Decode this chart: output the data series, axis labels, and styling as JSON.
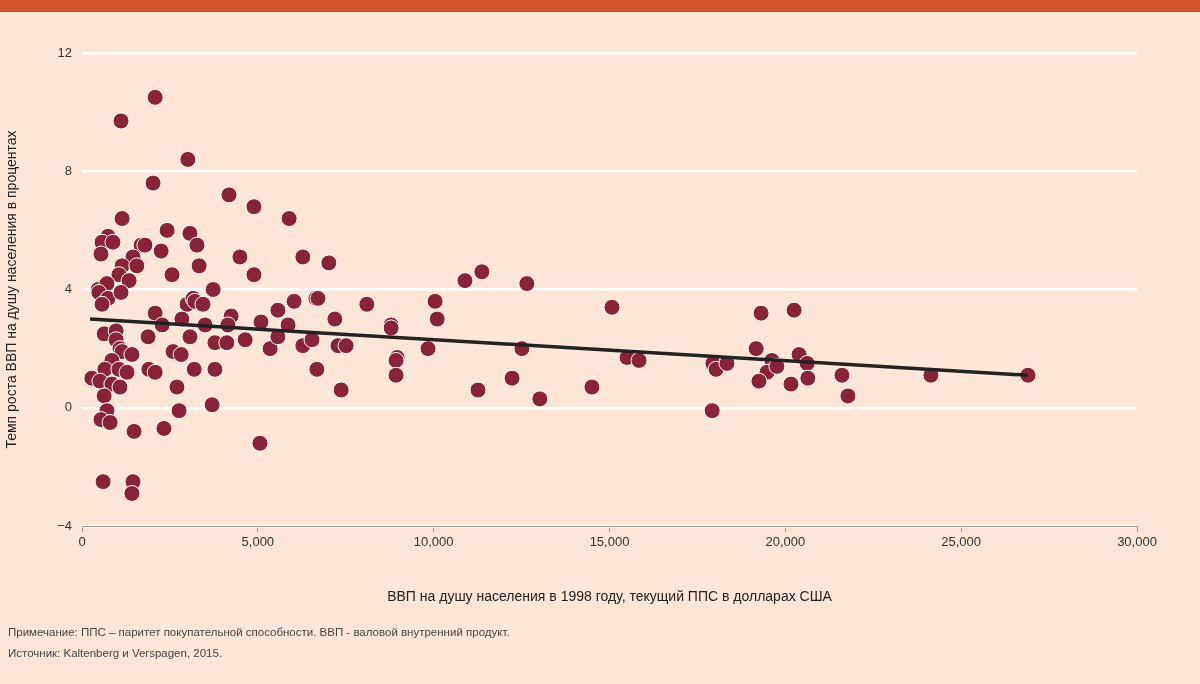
{
  "chart_data": {
    "type": "scatter",
    "xlabel": "ВВП на душу населения в 1998 году, текущий ППС в долларах США",
    "ylabel": "Темп роста ВВП на душу населения в процентах",
    "xlim": [
      0,
      30000
    ],
    "ylim": [
      -4,
      12
    ],
    "xticks": [
      0,
      {
        "value": 5000,
        "label": "5,000"
      },
      {
        "value": 10000,
        "label": "10,000"
      },
      {
        "value": 15000,
        "label": "15,000"
      },
      {
        "value": 20000,
        "label": "20,000"
      },
      {
        "value": 25000,
        "label": "25,000"
      },
      {
        "value": 30000,
        "label": "30,000"
      }
    ],
    "yticks": [
      {
        "value": -4,
        "label": "−4"
      },
      0,
      4,
      8,
      12
    ],
    "grid": "y",
    "legend": false,
    "marker": "circle",
    "series": [
      {
        "color": "#8b2338",
        "x": [
          2080,
          1110,
          3010,
          2020,
          4180,
          4890,
          5890,
          1140,
          2420,
          3070,
          740,
          570,
          880,
          540,
          1680,
          1790,
          2250,
          3270,
          4490,
          6280,
          3330,
          1450,
          1140,
          1560,
          1050,
          1340,
          2560,
          4890,
          460,
          710,
          480,
          740,
          570,
          1110,
          3730,
          2990,
          3160,
          3210,
          3440,
          2080,
          2840,
          2280,
          3500,
          4240,
          4150,
          5090,
          5570,
          6030,
          6650,
          5860,
          630,
          970,
          970,
          1880,
          3070,
          1080,
          1140,
          1420,
          3780,
          4120,
          4640,
          5350,
          5570,
          6280,
          6540,
          2590,
          2820,
          3190,
          3780,
          6680,
          850,
          650,
          280,
          1050,
          1280,
          510,
          850,
          1080,
          1900,
          2080,
          2700,
          630,
          710,
          540,
          800,
          2760,
          3700,
          1480,
          2330,
          5060,
          600,
          1450,
          1420,
          7020,
          6710,
          8100,
          7190,
          8790,
          8790,
          7280,
          7510,
          7370,
          8960,
          8930,
          8930,
          9840,
          10040,
          10100,
          10890,
          11370,
          12650,
          11260,
          12230,
          12510,
          13020,
          14500,
          15070,
          15500,
          15840,
          17920,
          19310,
          20250,
          19170,
          17940,
          18030,
          18340,
          19620,
          19480,
          19760,
          20390,
          20620,
          19250,
          20160,
          20640,
          21610,
          21780,
          24140,
          26900
        ],
        "values": [
          10.5,
          9.7,
          8.4,
          7.6,
          7.2,
          6.8,
          6.4,
          6.4,
          6.0,
          5.9,
          5.8,
          5.6,
          5.6,
          5.2,
          5.5,
          5.5,
          5.3,
          5.5,
          5.1,
          5.1,
          4.8,
          5.1,
          4.8,
          4.8,
          4.5,
          4.3,
          4.5,
          4.5,
          4.0,
          4.2,
          3.9,
          3.7,
          3.5,
          3.9,
          4.0,
          3.5,
          3.7,
          3.6,
          3.5,
          3.2,
          3.0,
          2.8,
          2.8,
          3.1,
          2.8,
          2.9,
          3.3,
          3.6,
          3.7,
          2.8,
          2.5,
          2.6,
          2.3,
          2.4,
          2.4,
          2.0,
          1.9,
          1.8,
          2.2,
          2.2,
          2.3,
          2.0,
          2.4,
          2.1,
          2.3,
          1.9,
          1.8,
          1.3,
          1.3,
          1.3,
          1.6,
          1.3,
          1.0,
          1.3,
          1.2,
          0.9,
          0.8,
          0.7,
          1.3,
          1.2,
          0.7,
          0.4,
          -0.1,
          -0.4,
          -0.5,
          -0.1,
          0.1,
          -0.8,
          -0.7,
          -1.2,
          -2.5,
          -2.5,
          -2.9,
          4.9,
          3.7,
          3.5,
          3.0,
          2.8,
          2.7,
          2.1,
          2.1,
          0.6,
          1.7,
          1.6,
          1.1,
          2.0,
          3.6,
          3.0,
          4.3,
          4.6,
          4.2,
          0.6,
          1.0,
          2.0,
          0.3,
          0.7,
          3.4,
          1.7,
          1.6,
          -0.1,
          3.2,
          3.3,
          2.0,
          1.5,
          1.3,
          1.5,
          1.6,
          1.2,
          1.4,
          1.8,
          1.5,
          0.9,
          0.8,
          1.0,
          1.1,
          0.4,
          1.1,
          1.1
        ]
      },
      {
        "type": "line",
        "color": "#222222",
        "marker": "none",
        "line_style": "solid",
        "x": [
          230,
          26900
        ],
        "values": [
          3.0,
          1.1
        ]
      }
    ],
    "annotations": [
      "Примечание: ППС – паритет покупательной способности. ВВП - валовой внутренний продукт.",
      "Источник: Kaltenberg и Verspagen, 2015."
    ]
  }
}
